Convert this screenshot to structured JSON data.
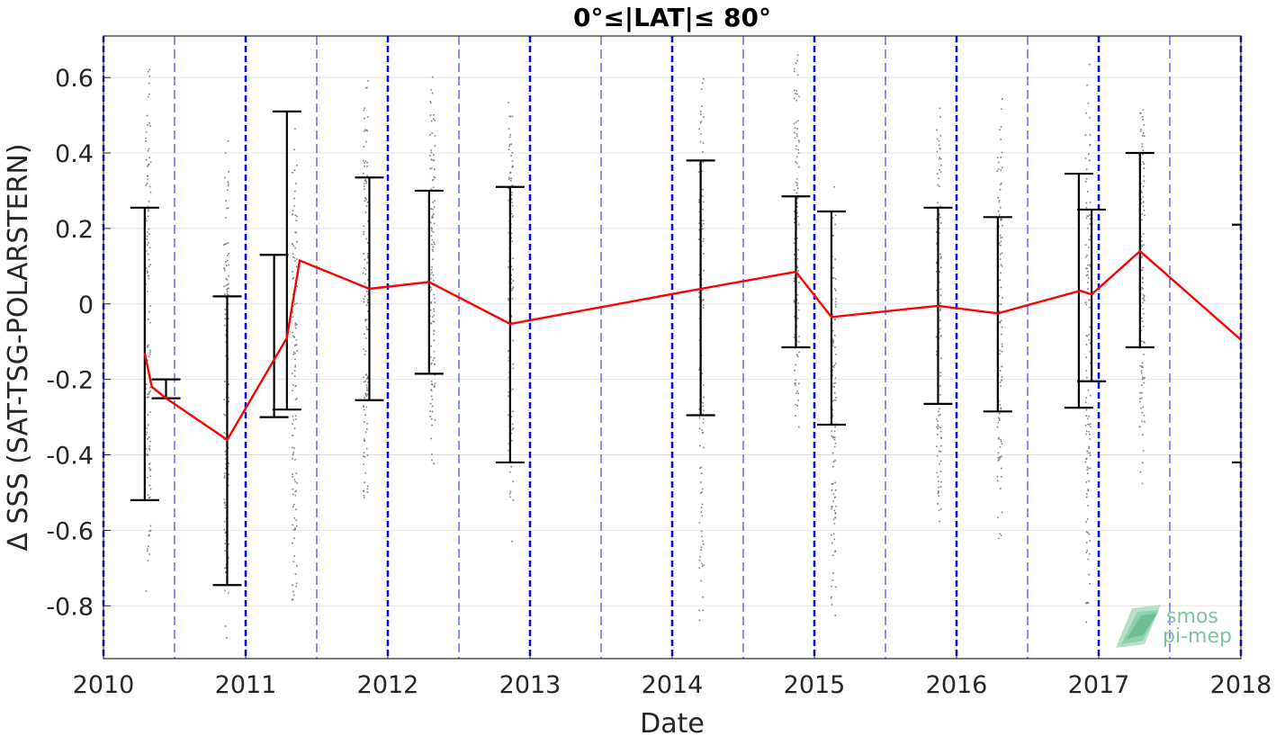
{
  "chart_data": {
    "type": "scatter",
    "title": "0°≤|LAT|≤ 80°",
    "xlabel": "Date",
    "ylabel": "Δ SSS (SAT-TSG-POLARSTERN)",
    "xlim": [
      2010.0,
      2018.0
    ],
    "ylim": [
      -0.94,
      0.71
    ],
    "xticks": [
      "2010",
      "2011",
      "2012",
      "2013",
      "2014",
      "2015",
      "2016",
      "2017",
      "2018"
    ],
    "yticks": [
      "0.6",
      "0.4",
      "0.2",
      "0",
      "-0.2",
      "-0.4",
      "-0.6",
      "-0.8"
    ],
    "ytick_values": [
      0.6,
      0.4,
      0.2,
      0,
      -0.2,
      -0.4,
      -0.6,
      -0.8
    ],
    "grid": true,
    "colors": {
      "mean_line": "#ff0000",
      "error_bars": "#000000",
      "points": "#808080",
      "year_lines": "#0000ff",
      "half_year_lines": "#4040ff"
    },
    "year_boundaries": [
      2010,
      2011,
      2012,
      2013,
      2014,
      2015,
      2016,
      2017,
      2018
    ],
    "half_year_boundaries": [
      2010.5,
      2011.5,
      2012.5,
      2013.5,
      2014.5,
      2015.5,
      2016.5,
      2017.5
    ],
    "series": [
      {
        "type": "line",
        "x": [
          2010.29,
          2010.34,
          2010.44,
          2010.87,
          2011.29,
          2011.38,
          2011.87,
          2012.29,
          2012.86,
          2014.2,
          2014.87,
          2015.12,
          2015.87,
          2016.29,
          2016.87,
          2016.95,
          2017.29,
          2018.0
        ],
        "y": [
          -0.13,
          -0.22,
          -0.25,
          -0.36,
          -0.09,
          0.115,
          0.04,
          0.058,
          -0.053,
          0.04,
          0.085,
          -0.035,
          -0.005,
          -0.025,
          0.035,
          0.025,
          0.14,
          -0.095
        ]
      },
      {
        "type": "errorbar",
        "x": [
          2010.29,
          2010.44,
          2010.87,
          2011.2,
          2011.29,
          2011.87,
          2012.29,
          2012.86,
          2014.2,
          2014.87,
          2015.12,
          2015.87,
          2016.29,
          2016.86,
          2016.95,
          2017.29
        ],
        "low": [
          -0.52,
          -0.25,
          -0.745,
          -0.3,
          -0.28,
          -0.255,
          -0.185,
          -0.42,
          -0.295,
          -0.115,
          -0.32,
          -0.265,
          -0.285,
          -0.275,
          -0.205,
          -0.115
        ],
        "high": [
          0.255,
          -0.2,
          0.02,
          0.13,
          0.51,
          0.335,
          0.3,
          0.31,
          0.38,
          0.285,
          0.245,
          0.255,
          0.23,
          0.345,
          0.25,
          0.4
        ]
      }
    ],
    "point_clusters": [
      {
        "x": 2010.31,
        "low": -0.92,
        "high": 0.71
      },
      {
        "x": 2010.86,
        "low": -0.94,
        "high": 0.48
      },
      {
        "x": 2011.34,
        "low": -0.9,
        "high": 0.52
      },
      {
        "x": 2011.84,
        "low": -0.62,
        "high": 0.71
      },
      {
        "x": 2012.31,
        "low": -0.48,
        "high": 0.66
      },
      {
        "x": 2012.86,
        "low": -0.67,
        "high": 0.68
      },
      {
        "x": 2014.2,
        "low": -0.92,
        "high": 0.71
      },
      {
        "x": 2014.87,
        "low": -0.43,
        "high": 0.71
      },
      {
        "x": 2015.13,
        "low": -0.88,
        "high": 0.42
      },
      {
        "x": 2015.87,
        "low": -0.67,
        "high": 0.58
      },
      {
        "x": 2016.3,
        "low": -0.72,
        "high": 0.63
      },
      {
        "x": 2016.92,
        "low": -0.92,
        "high": 0.66
      },
      {
        "x": 2017.3,
        "low": -0.49,
        "high": 0.65
      }
    ],
    "edge_markers": [
      {
        "x": 2018.0,
        "y": 0.21
      },
      {
        "x": 2018.0,
        "y": -0.42
      }
    ]
  },
  "logo": {
    "line1": "smos",
    "line2": "pi-mep"
  }
}
